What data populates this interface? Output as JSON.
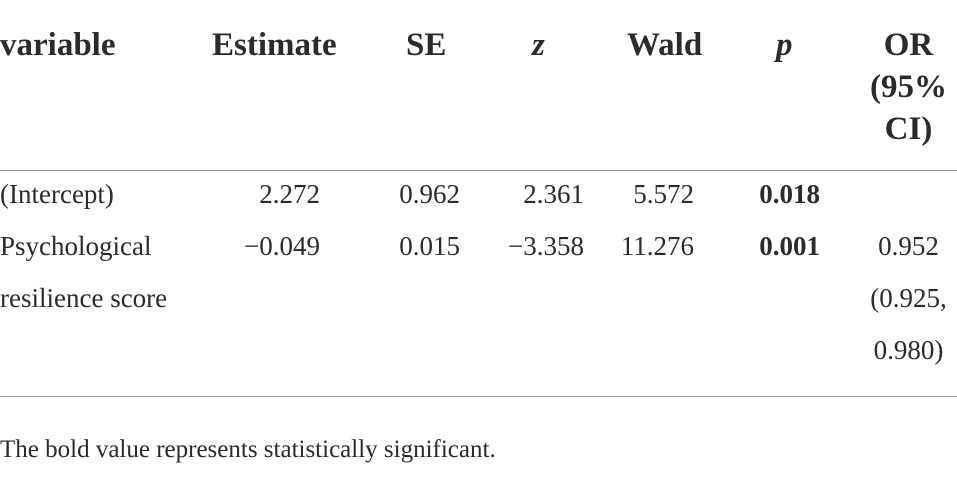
{
  "table": {
    "headers": {
      "variable": "variable",
      "estimate": "Estimate",
      "se": "SE",
      "z": "z",
      "wald": "Wald",
      "p": "p",
      "or_line1": "OR",
      "or_line2": "(95%",
      "or_line3": "CI)"
    },
    "rows": [
      {
        "variable": [
          "(Intercept)"
        ],
        "estimate": "2.272",
        "se": "0.962",
        "z": "2.361",
        "wald": "5.572",
        "p": "0.018",
        "p_bold": true,
        "or": []
      },
      {
        "variable": [
          "Psychological",
          "resilience score"
        ],
        "estimate": "−0.049",
        "se": "0.015",
        "z": "−3.358",
        "wald": "11.276",
        "p": "0.001",
        "p_bold": true,
        "or": [
          "0.952",
          "(0.925,",
          "0.980)"
        ]
      }
    ]
  },
  "footnote": "The bold value represents statistically significant."
}
